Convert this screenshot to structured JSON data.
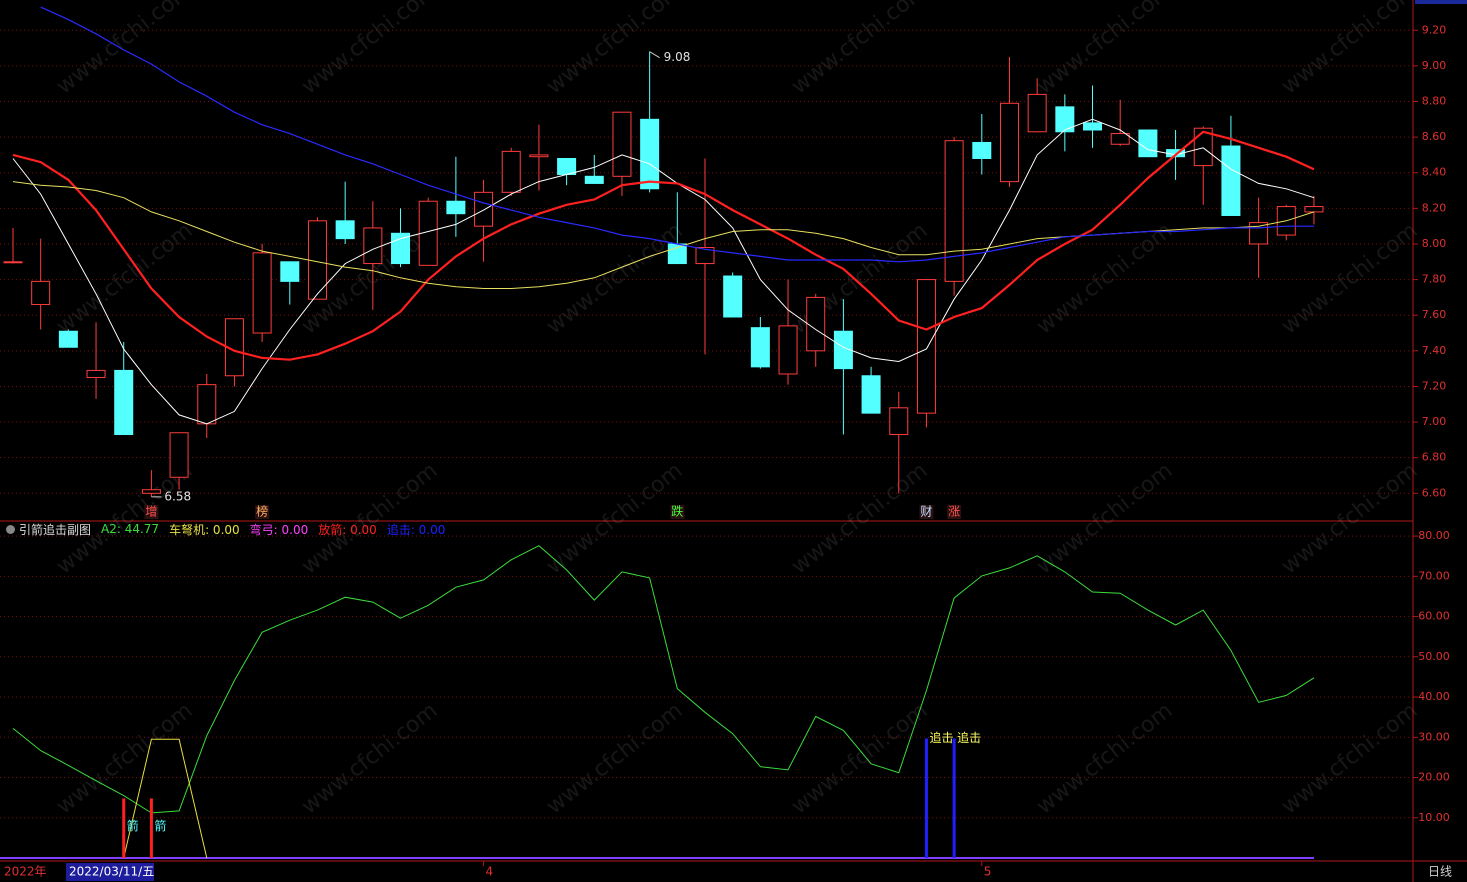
{
  "chart_data": [
    {
      "type": "candlestick",
      "watermark": "www.cfchi.com",
      "categories": [
        null,
        null,
        null,
        null,
        null,
        null,
        null,
        null,
        null,
        null,
        null,
        null,
        null,
        null,
        null,
        null,
        null,
        "4",
        null,
        null,
        null,
        null,
        null,
        null,
        null,
        null,
        null,
        null,
        null,
        null,
        null,
        null,
        null,
        null,
        null,
        "5",
        null,
        null,
        null,
        null,
        null,
        null,
        null,
        null,
        null,
        null,
        null,
        null
      ],
      "x_axis_start": "2022年",
      "cursor_date": "2022/03/11/五",
      "period": "日线",
      "up_color": "#ff3c3c",
      "down_color": "#54ffff",
      "open": [
        7.9,
        7.66,
        7.51,
        7.25,
        7.29,
        6.6,
        6.69,
        6.99,
        7.26,
        7.5,
        7.9,
        7.69,
        8.13,
        7.89,
        8.06,
        7.88,
        8.24,
        8.1,
        8.29,
        8.49,
        8.48,
        8.38,
        8.38,
        8.7,
        8.0,
        7.89,
        7.82,
        7.53,
        7.27,
        7.4,
        7.51,
        7.26,
        6.93,
        7.05,
        7.79,
        8.57,
        8.35,
        8.63,
        8.77,
        8.68,
        8.56,
        8.64,
        8.53,
        8.44,
        8.55,
        8.0,
        8.05,
        8.18
      ],
      "high": [
        8.09,
        8.03,
        7.52,
        7.56,
        7.45,
        6.73,
        6.94,
        7.27,
        7.58,
        8.0,
        7.9,
        8.15,
        8.35,
        8.24,
        8.2,
        8.26,
        8.49,
        8.36,
        8.54,
        8.67,
        8.48,
        8.5,
        8.74,
        9.08,
        8.29,
        8.48,
        7.84,
        7.59,
        7.8,
        7.72,
        7.69,
        7.31,
        7.17,
        7.8,
        8.6,
        8.73,
        9.05,
        8.93,
        8.84,
        8.89,
        8.81,
        8.64,
        8.64,
        8.66,
        8.72,
        8.26,
        8.22,
        8.27
      ],
      "low": [
        7.89,
        7.52,
        7.42,
        7.13,
        6.93,
        6.58,
        6.62,
        6.91,
        7.2,
        7.45,
        7.66,
        7.69,
        8.0,
        7.63,
        7.87,
        7.88,
        8.04,
        7.9,
        8.27,
        8.3,
        8.33,
        8.34,
        8.27,
        8.29,
        7.89,
        7.38,
        7.59,
        7.3,
        7.21,
        7.31,
        6.93,
        7.05,
        6.6,
        6.97,
        7.71,
        8.39,
        8.32,
        8.63,
        8.52,
        8.54,
        8.55,
        8.49,
        8.36,
        8.22,
        8.16,
        7.81,
        8.02,
        8.11
      ],
      "close": [
        7.9,
        7.79,
        7.42,
        7.29,
        6.93,
        6.62,
        6.94,
        7.21,
        7.58,
        7.95,
        7.79,
        8.13,
        8.03,
        8.09,
        7.89,
        8.24,
        8.17,
        8.29,
        8.52,
        8.5,
        8.39,
        8.34,
        8.74,
        8.31,
        7.89,
        7.98,
        7.59,
        7.31,
        7.54,
        7.7,
        7.3,
        7.05,
        7.08,
        7.8,
        8.58,
        8.48,
        8.79,
        8.84,
        8.63,
        8.64,
        8.62,
        8.49,
        8.49,
        8.65,
        8.16,
        8.12,
        8.21,
        8.21
      ],
      "series": [
        {
          "color": "#ffffff",
          "width": 1,
          "values": [
            8.48,
            8.28,
            8.0,
            7.72,
            7.41,
            7.21,
            7.04,
            6.99,
            7.06,
            7.3,
            7.52,
            7.72,
            7.89,
            7.97,
            8.03,
            8.07,
            8.11,
            8.19,
            8.28,
            8.35,
            8.39,
            8.43,
            8.5,
            8.45,
            8.34,
            8.25,
            8.09,
            7.8,
            7.63,
            7.52,
            7.42,
            7.36,
            7.34,
            7.41,
            7.69,
            7.91,
            8.19,
            8.5,
            8.64,
            8.7,
            8.64,
            8.53,
            8.5,
            8.54,
            8.42,
            8.34,
            8.31,
            8.26
          ]
        },
        {
          "color": "#ff2020",
          "width": 2.2,
          "values": [
            8.5,
            8.46,
            8.36,
            8.19,
            7.97,
            7.75,
            7.59,
            7.48,
            7.4,
            7.36,
            7.35,
            7.38,
            7.44,
            7.51,
            7.62,
            7.8,
            7.93,
            8.03,
            8.11,
            8.17,
            8.22,
            8.25,
            8.33,
            8.35,
            8.34,
            8.28,
            8.19,
            8.11,
            8.03,
            7.94,
            7.86,
            7.72,
            7.57,
            7.52,
            7.59,
            7.64,
            7.77,
            7.91,
            8.0,
            8.08,
            8.22,
            8.37,
            8.5,
            8.63,
            8.59,
            8.54,
            8.49,
            8.42
          ]
        },
        {
          "color": "#e8e060",
          "width": 1,
          "values": [
            8.35,
            8.33,
            8.32,
            8.3,
            8.26,
            8.18,
            8.13,
            8.07,
            8.01,
            7.96,
            7.93,
            7.9,
            7.87,
            7.85,
            7.81,
            7.78,
            7.76,
            7.75,
            7.75,
            7.76,
            7.78,
            7.81,
            7.87,
            7.93,
            7.98,
            8.03,
            8.07,
            8.08,
            8.08,
            8.06,
            8.03,
            7.98,
            7.94,
            7.94,
            7.96,
            7.97,
            8.0,
            8.03,
            8.04,
            8.05,
            8.06,
            8.07,
            8.08,
            8.09,
            8.09,
            8.1,
            8.13,
            8.18
          ]
        },
        {
          "color": "#2a2aff",
          "width": 1.2,
          "values": [
            null,
            9.33,
            9.26,
            9.18,
            9.09,
            9.01,
            8.91,
            8.83,
            8.74,
            8.67,
            8.62,
            8.56,
            8.5,
            8.45,
            8.39,
            8.33,
            8.28,
            8.23,
            8.19,
            8.15,
            8.12,
            8.09,
            8.05,
            8.03,
            8.0,
            7.97,
            7.95,
            7.93,
            7.91,
            7.91,
            7.91,
            7.91,
            7.9,
            7.91,
            7.93,
            7.95,
            7.98,
            8.01,
            8.04,
            8.05,
            8.06,
            8.07,
            8.07,
            8.08,
            8.09,
            8.09,
            8.1,
            8.1
          ]
        }
      ],
      "signals": [
        null,
        null,
        null,
        null,
        null,
        {
          "text": "增",
          "color": "#ff5050"
        },
        null,
        null,
        null,
        {
          "text": "榜",
          "color": "#ffb060"
        },
        null,
        null,
        null,
        null,
        null,
        null,
        null,
        null,
        null,
        null,
        null,
        null,
        null,
        null,
        {
          "text": "跌",
          "color": "#40ff40"
        },
        null,
        null,
        null,
        null,
        null,
        null,
        null,
        null,
        {
          "text": "财",
          "color": "#c0e0ff"
        },
        {
          "text": "涨",
          "color": "#ff5050"
        },
        null,
        null,
        null,
        null,
        null,
        null,
        null,
        null,
        null,
        null,
        null,
        null,
        null
      ],
      "ylim": [
        6.45,
        9.37
      ],
      "yticks": [
        {
          "value": 6.6,
          "label": "6.60"
        },
        {
          "value": 6.8,
          "label": "6.80"
        },
        {
          "value": 7.0,
          "label": "7.00"
        },
        {
          "value": 7.2,
          "label": "7.20"
        },
        {
          "value": 7.4,
          "label": "7.40"
        },
        {
          "value": 7.6,
          "label": "7.60"
        },
        {
          "value": 7.8,
          "label": "7.80"
        },
        {
          "value": 8.0,
          "label": "8.00"
        },
        {
          "value": 8.2,
          "label": "8.20"
        },
        {
          "value": 8.4,
          "label": "8.40"
        },
        {
          "value": 8.6,
          "label": "8.60"
        },
        {
          "value": 8.8,
          "label": "8.80"
        },
        {
          "value": 9.0,
          "label": "9.00"
        },
        {
          "value": 9.2,
          "label": "9.20"
        }
      ],
      "grid": true
    },
    {
      "type": "indicator",
      "title": "引箭追击副图",
      "series": [
        {
          "name": "A2",
          "legend_label": "A2: 44.77",
          "color": "#3cdc3c",
          "kind": "line",
          "values": [
            32.2,
            26.7,
            23,
            19.2,
            15.5,
            11.2,
            11.7,
            30.4,
            44.1,
            56.1,
            59.1,
            61.6,
            64.8,
            63.6,
            59.6,
            62.8,
            67.3,
            69.1,
            74.1,
            77.6,
            71.6,
            64.1,
            71.1,
            69.6,
            42.1,
            36.2,
            30.9,
            22.7,
            21.9,
            35.2,
            31.7,
            23.4,
            21.2,
            41.6,
            64.6,
            70.1,
            72.1,
            75.1,
            71.1,
            66.1,
            65.8,
            61.6,
            57.9,
            61.6,
            51.6,
            38.7,
            40.4,
            44.77
          ]
        },
        {
          "name": "车弩机",
          "legend_label": "车弩机: 0.00",
          "color": "#e8e040",
          "kind": "line",
          "values": [
            null,
            null,
            null,
            null,
            0,
            29.5,
            29.5,
            0,
            null,
            null,
            null,
            null,
            null,
            null,
            null,
            null,
            null,
            null,
            null,
            null,
            null,
            null,
            null,
            null,
            null,
            null,
            null,
            null,
            null,
            null,
            null,
            null,
            null,
            null,
            null,
            null,
            null,
            null,
            null,
            null,
            null,
            null,
            null,
            null,
            null,
            null,
            null,
            null
          ]
        },
        {
          "name": "弯弓",
          "legend_label": "弯弓: 0.00",
          "color": "#ff40ff",
          "kind": "none"
        },
        {
          "name": "放箭",
          "legend_label": "放箭: 0.00",
          "color": "#ff2020",
          "kind": "bar",
          "bar_label": "箭",
          "label_color": "#54ffff",
          "values": [
            null,
            null,
            null,
            null,
            14.8,
            14.8,
            null,
            null,
            null,
            null,
            null,
            null,
            null,
            null,
            null,
            null,
            null,
            null,
            null,
            null,
            null,
            null,
            null,
            null,
            null,
            null,
            null,
            null,
            null,
            null,
            null,
            null,
            null,
            null,
            null,
            null,
            null,
            null,
            null,
            null,
            null,
            null,
            null,
            null,
            null,
            null,
            null,
            null
          ]
        },
        {
          "name": "追击",
          "legend_label": "追击: 0.00",
          "color": "#2020ff",
          "kind": "bar",
          "bar_label": "追击",
          "label_color": "#ffff60",
          "values": [
            null,
            null,
            null,
            null,
            null,
            null,
            null,
            null,
            null,
            null,
            null,
            null,
            null,
            null,
            null,
            null,
            null,
            null,
            null,
            null,
            null,
            null,
            null,
            null,
            null,
            null,
            null,
            null,
            null,
            null,
            null,
            null,
            null,
            29.7,
            29.7,
            null,
            null,
            null,
            null,
            null,
            null,
            null,
            null,
            null,
            null,
            null,
            null,
            null
          ]
        }
      ],
      "ylim": [
        0,
        83.5
      ],
      "yticks": [
        {
          "value": 10,
          "label": "10.00"
        },
        {
          "value": 20,
          "label": "20.00"
        },
        {
          "value": 30,
          "label": "30.00"
        },
        {
          "value": 40,
          "label": "40.00"
        },
        {
          "value": 50,
          "label": "50.00"
        },
        {
          "value": 60,
          "label": "60.00"
        },
        {
          "value": 70,
          "label": "70.00"
        },
        {
          "value": 80,
          "label": "80.00"
        }
      ],
      "grid": true
    }
  ]
}
